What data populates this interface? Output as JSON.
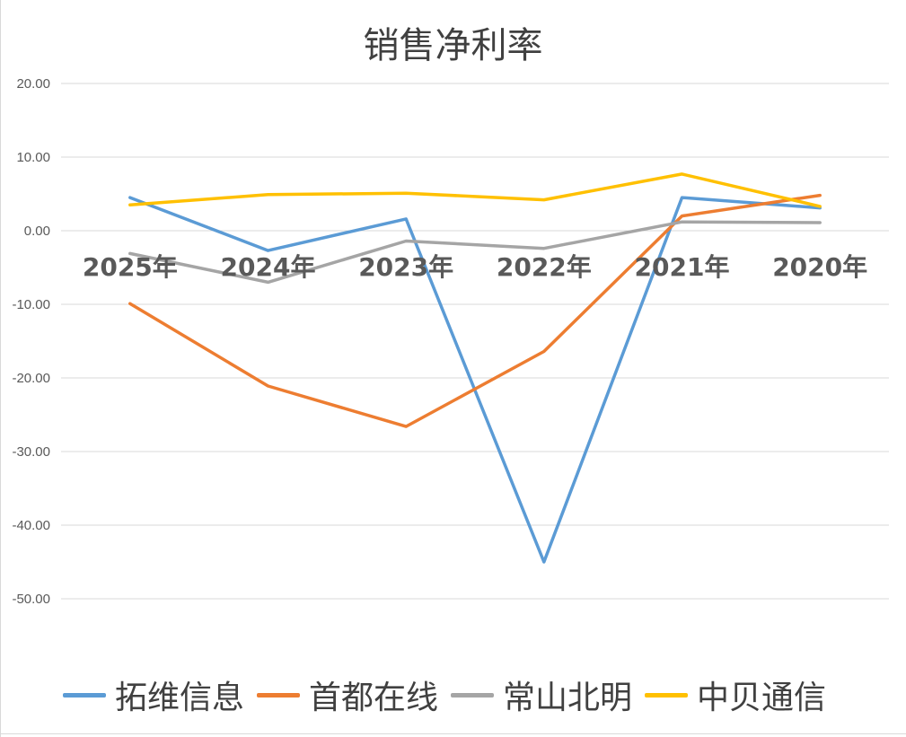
{
  "chart_data": {
    "type": "line",
    "title": "销售净利率",
    "categories": [
      "2025年",
      "2024年",
      "2023年",
      "2022年",
      "2021年",
      "2020年"
    ],
    "ylim": [
      -50,
      20
    ],
    "yticks": [
      -50,
      -40,
      -30,
      -20,
      -10,
      0,
      10,
      20
    ],
    "grid": true,
    "legend_position": "bottom",
    "series": [
      {
        "name": "拓维信息",
        "color": "#5b9bd5",
        "values": [
          4.5,
          -2.7,
          1.6,
          -45.0,
          4.5,
          3.1
        ]
      },
      {
        "name": "首都在线",
        "color": "#ed7d31",
        "values": [
          -9.9,
          -21.1,
          -26.6,
          -16.4,
          2.0,
          4.8
        ]
      },
      {
        "name": "常山北明",
        "color": "#a5a5a5",
        "values": [
          -3.1,
          -7.0,
          -1.4,
          -2.4,
          1.2,
          1.1
        ]
      },
      {
        "name": "中贝通信",
        "color": "#ffc000",
        "values": [
          3.5,
          4.9,
          5.1,
          4.2,
          7.7,
          3.3
        ]
      }
    ]
  }
}
